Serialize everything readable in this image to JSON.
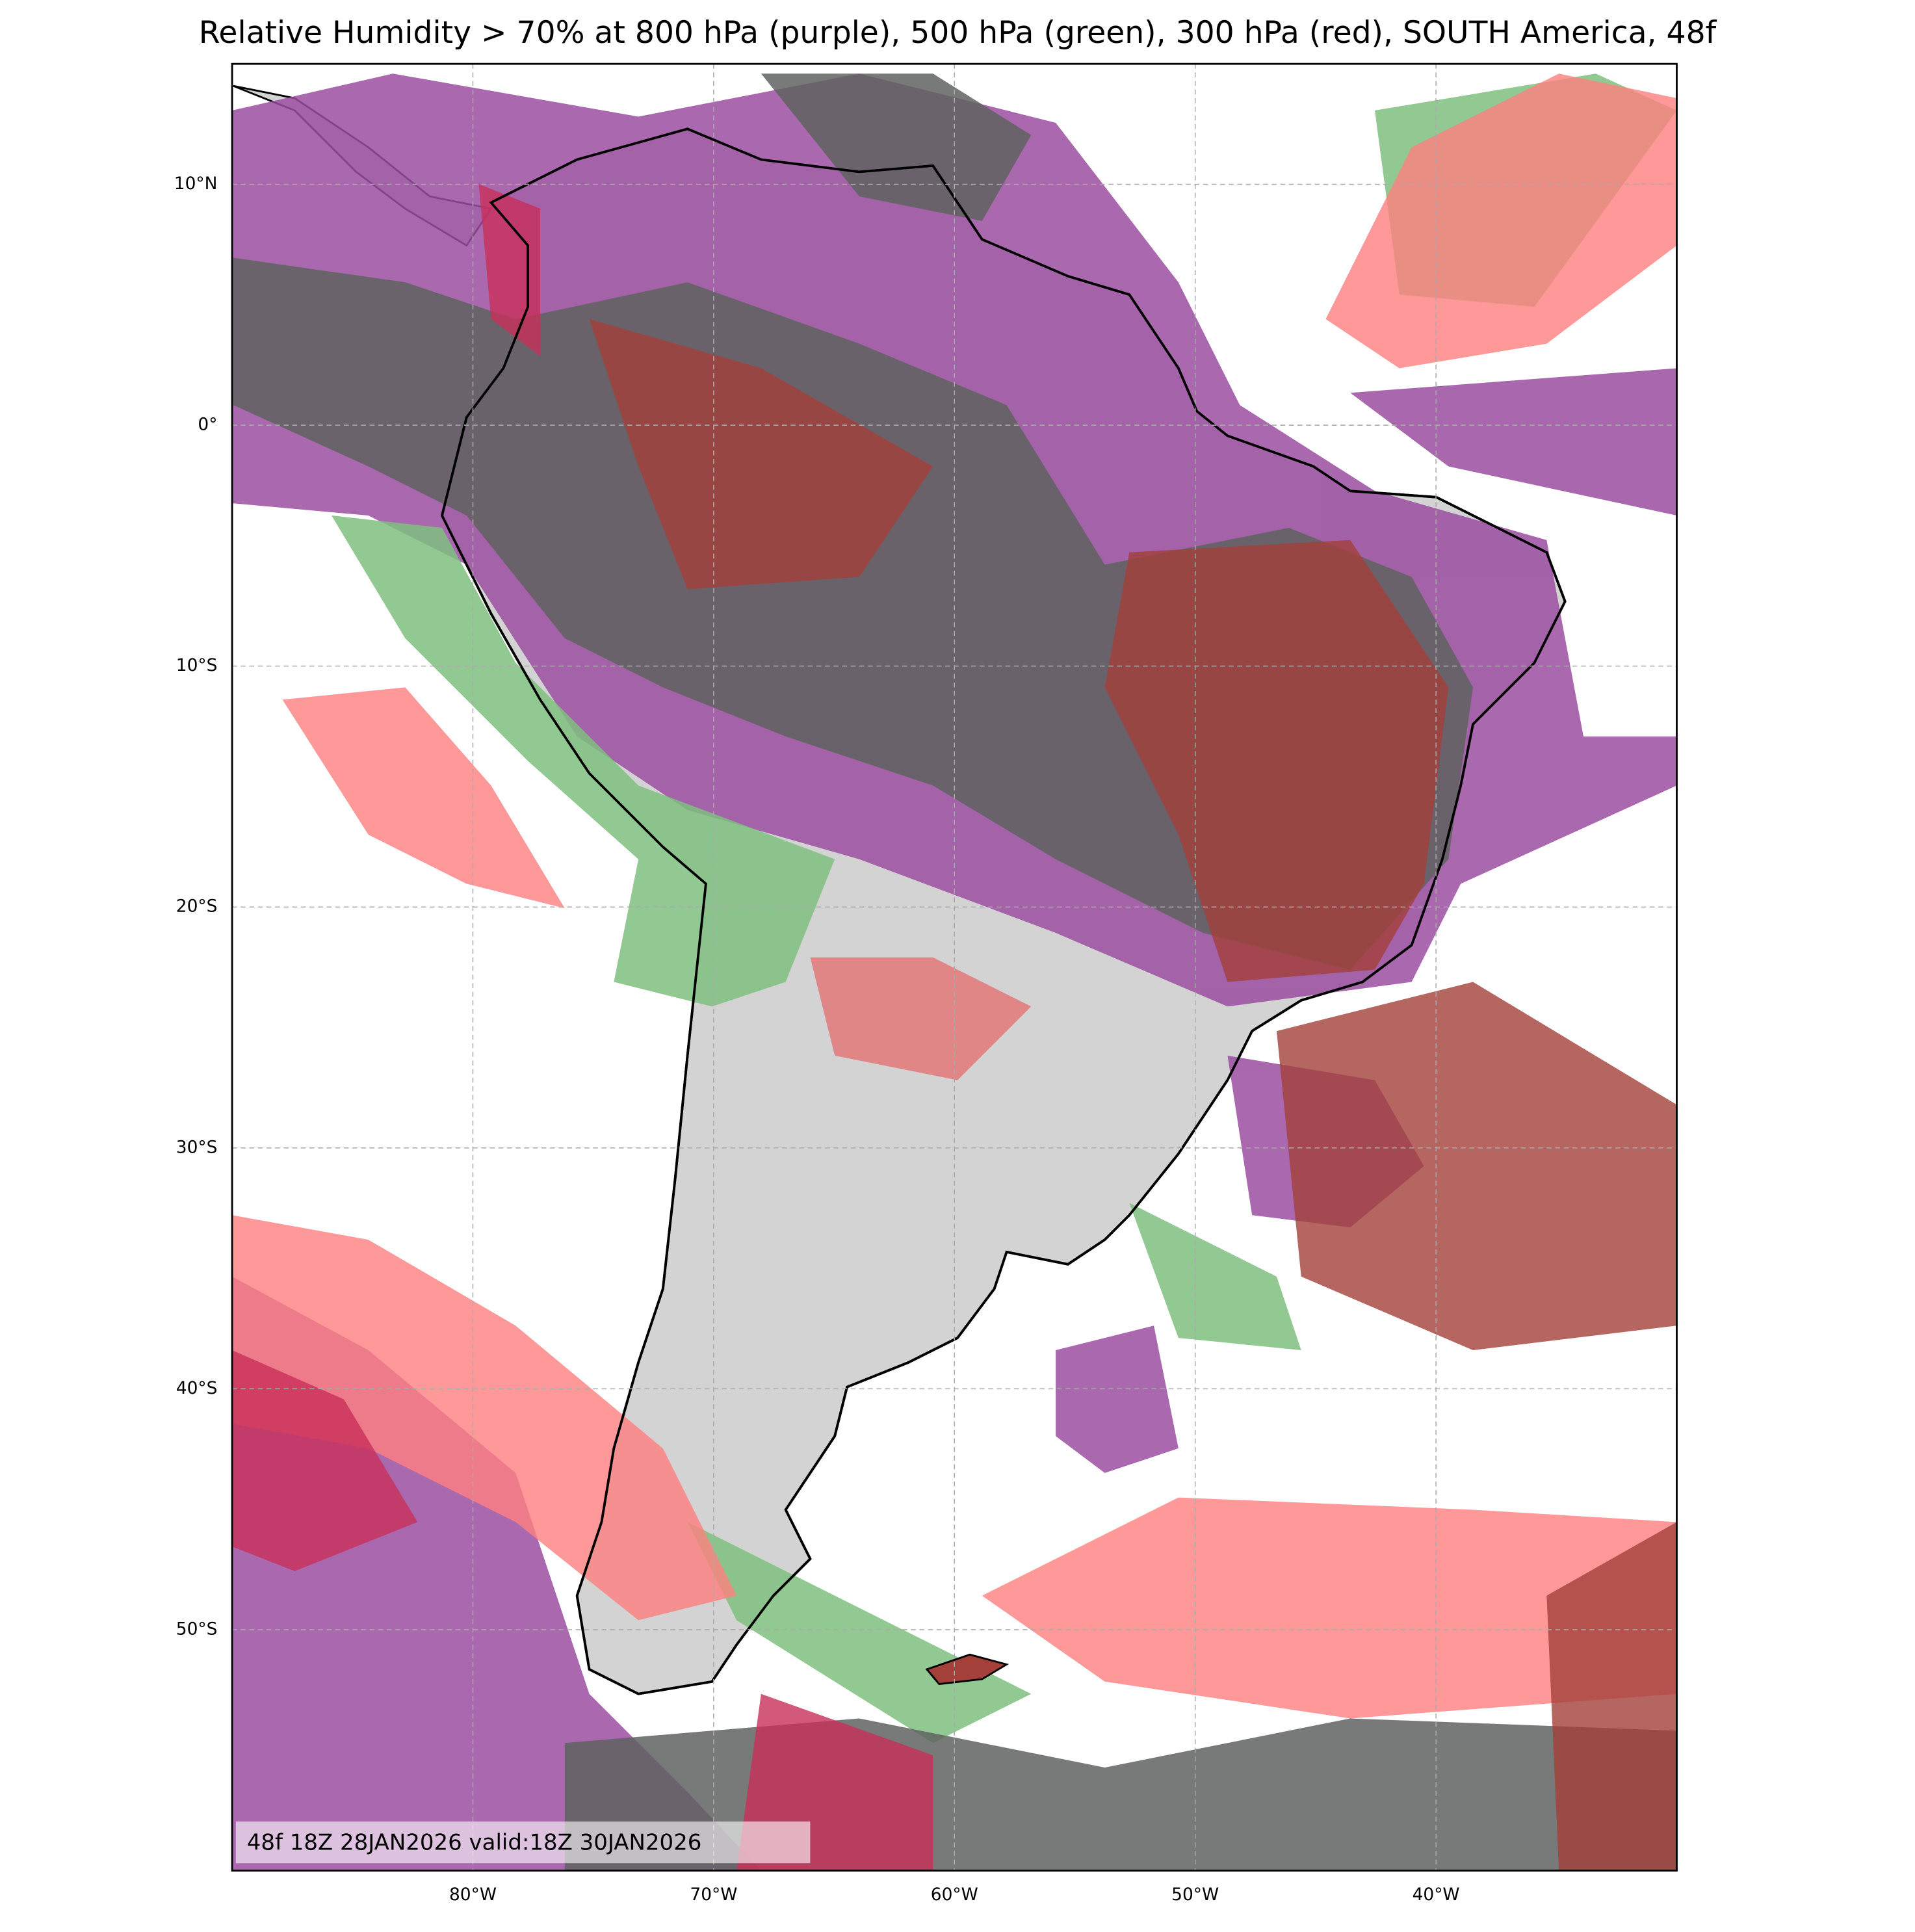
{
  "chart_data": {
    "type": "map",
    "title": "Relative Humidity > 70% at 800 hPa (purple), 500 hPa (green), 300 hPa (red), SOUTH America, 48f",
    "xlim": [
      -90,
      -30
    ],
    "ylim": [
      -60,
      15
    ],
    "xticks": [
      {
        "value": -80,
        "label": "80°W"
      },
      {
        "value": -70,
        "label": "70°W"
      },
      {
        "value": -60,
        "label": "60°W"
      },
      {
        "value": -50,
        "label": "50°W"
      },
      {
        "value": -40,
        "label": "40°W"
      }
    ],
    "yticks": [
      {
        "value": 10,
        "label": "10°N"
      },
      {
        "value": 0,
        "label": "0°"
      },
      {
        "value": -10,
        "label": "10°S"
      },
      {
        "value": -20,
        "label": "20°S"
      },
      {
        "value": -30,
        "label": "30°S"
      },
      {
        "value": -40,
        "label": "40°S"
      },
      {
        "value": -50,
        "label": "50°S"
      }
    ],
    "grid": true,
    "annotation": "48f 18Z 28JAN2026 valid:18Z 30JAN2026"
  }
}
